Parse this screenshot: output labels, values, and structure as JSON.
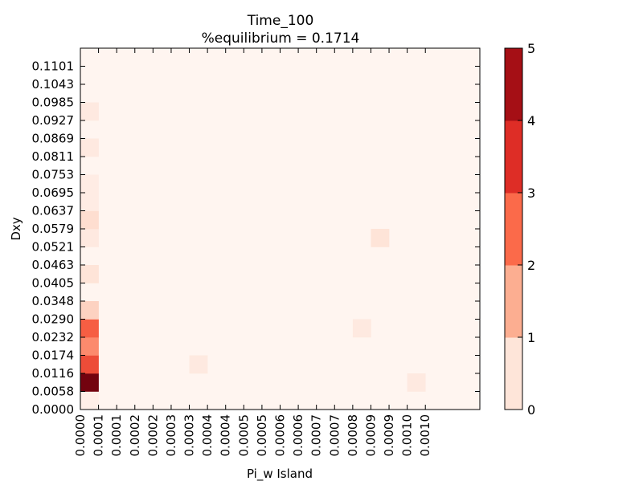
{
  "chart_data": {
    "type": "heatmap",
    "title": "Time_100",
    "subtitle": "%equilibrium = 0.1714",
    "xlabel": "Pi_w Island",
    "ylabel": "Dxy",
    "x_tick_labels": [
      "0.0000",
      "0.0001",
      "0.0001",
      "0.0002",
      "0.0002",
      "0.0003",
      "0.0003",
      "0.0004",
      "0.0004",
      "0.0005",
      "0.0005",
      "0.0006",
      "0.0006",
      "0.0007",
      "0.0007",
      "0.0008",
      "0.0009",
      "0.0009",
      "0.0010",
      "0.0010"
    ],
    "y_tick_labels": [
      "0.0000",
      "0.0058",
      "0.0116",
      "0.0174",
      "0.0232",
      "0.0290",
      "0.0348",
      "0.0405",
      "0.0463",
      "0.0521",
      "0.0579",
      "0.0637",
      "0.0695",
      "0.0753",
      "0.0811",
      "0.0869",
      "0.0927",
      "0.0985",
      "0.1043",
      "0.1101"
    ],
    "grid": false,
    "colormap": "Reds",
    "colorbar": {
      "min": 0,
      "max": 5,
      "ticks": [
        "0",
        "1",
        "2",
        "3",
        "4",
        "5"
      ],
      "colors": [
        "#fee5d9",
        "#fcae91",
        "#fb6a4a",
        "#de2d26",
        "#a50f15"
      ]
    },
    "cells": [
      {
        "x": 0,
        "y": 0,
        "value": 0.1
      },
      {
        "x": 0,
        "y": 1,
        "value": 4.8
      },
      {
        "x": 0,
        "y": 2,
        "value": 2.5
      },
      {
        "x": 0,
        "y": 3,
        "value": 1.6
      },
      {
        "x": 0,
        "y": 4,
        "value": 2.2
      },
      {
        "x": 0,
        "y": 5,
        "value": 0.6
      },
      {
        "x": 0,
        "y": 7,
        "value": 0.3
      },
      {
        "x": 0,
        "y": 9,
        "value": 0.2
      },
      {
        "x": 0,
        "y": 10,
        "value": 0.4
      },
      {
        "x": 0,
        "y": 11,
        "value": 0.15
      },
      {
        "x": 0,
        "y": 12,
        "value": 0.15
      },
      {
        "x": 0,
        "y": 14,
        "value": 0.2
      },
      {
        "x": 0,
        "y": 16,
        "value": 0.2
      },
      {
        "x": 6,
        "y": 2,
        "value": 0.2
      },
      {
        "x": 15,
        "y": 4,
        "value": 0.2
      },
      {
        "x": 16,
        "y": 9,
        "value": 0.3
      },
      {
        "x": 18,
        "y": 1,
        "value": 0.2
      }
    ]
  }
}
